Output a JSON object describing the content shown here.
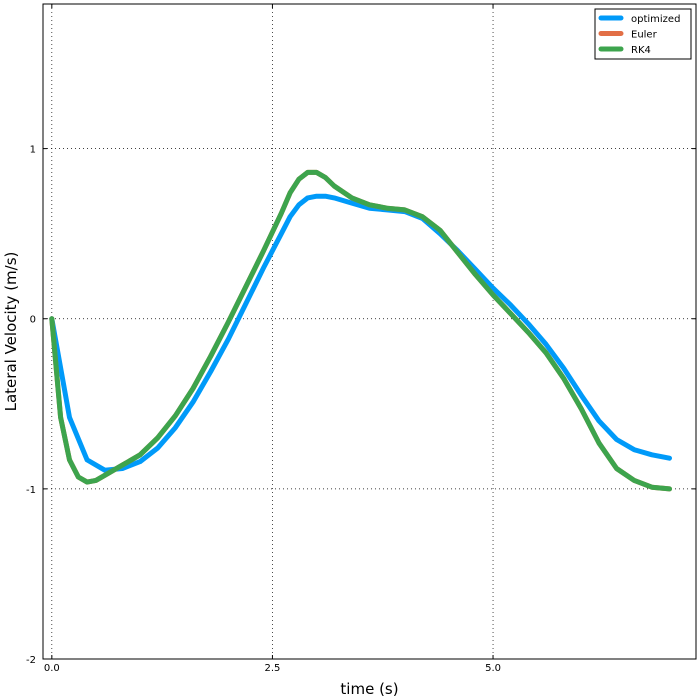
{
  "chart_data": {
    "type": "line",
    "title": "",
    "xlabel": "time (s)",
    "ylabel": "Lateral Velocity (m/s)",
    "xlim": [
      -0.1,
      7.3
    ],
    "ylim": [
      -2.0,
      1.85
    ],
    "xticks": [
      {
        "value": 0.0,
        "label": "0.0"
      },
      {
        "value": 2.5,
        "label": "2.5"
      },
      {
        "value": 5.0,
        "label": "5.0"
      }
    ],
    "yticks": [
      {
        "value": -2,
        "label": "-2"
      },
      {
        "value": -1,
        "label": "-1"
      },
      {
        "value": 0,
        "label": "0"
      },
      {
        "value": 1,
        "label": "1"
      }
    ],
    "grid": true,
    "legend_position": "top-right",
    "series": [
      {
        "name": "optimized",
        "color": "#009af9",
        "x": [
          0.0,
          0.2,
          0.4,
          0.6,
          0.8,
          1.0,
          1.2,
          1.4,
          1.6,
          1.8,
          2.0,
          2.2,
          2.4,
          2.6,
          2.7,
          2.8,
          2.9,
          3.0,
          3.1,
          3.2,
          3.4,
          3.6,
          3.8,
          4.0,
          4.2,
          4.4,
          4.6,
          4.8,
          5.0,
          5.2,
          5.4,
          5.6,
          5.8,
          6.0,
          6.2,
          6.4,
          6.6,
          6.8,
          7.0
        ],
        "y": [
          0.0,
          -0.58,
          -0.83,
          -0.89,
          -0.88,
          -0.84,
          -0.76,
          -0.64,
          -0.49,
          -0.31,
          -0.12,
          0.09,
          0.3,
          0.5,
          0.6,
          0.67,
          0.71,
          0.72,
          0.72,
          0.71,
          0.68,
          0.65,
          0.64,
          0.63,
          0.59,
          0.5,
          0.4,
          0.29,
          0.18,
          0.08,
          -0.03,
          -0.15,
          -0.29,
          -0.45,
          -0.6,
          -0.71,
          -0.77,
          -0.8,
          -0.82
        ]
      },
      {
        "name": "Euler",
        "color": "#e26f46",
        "x": [
          0.0,
          0.1,
          0.2,
          0.3,
          0.4,
          0.5,
          0.6,
          0.8,
          1.0,
          1.2,
          1.4,
          1.6,
          1.8,
          2.0,
          2.2,
          2.4,
          2.6,
          2.7,
          2.8,
          2.9,
          3.0,
          3.1,
          3.2,
          3.4,
          3.6,
          3.8,
          4.0,
          4.1,
          4.2,
          4.4,
          4.6,
          4.8,
          5.0,
          5.2,
          5.4,
          5.6,
          5.8,
          6.0,
          6.2,
          6.4,
          6.6,
          6.8,
          7.0
        ],
        "y": [
          0.0,
          -0.58,
          -0.83,
          -0.93,
          -0.96,
          -0.95,
          -0.92,
          -0.86,
          -0.8,
          -0.7,
          -0.57,
          -0.41,
          -0.22,
          -0.02,
          0.19,
          0.4,
          0.62,
          0.74,
          0.82,
          0.86,
          0.86,
          0.83,
          0.78,
          0.71,
          0.67,
          0.65,
          0.64,
          0.62,
          0.6,
          0.52,
          0.39,
          0.26,
          0.14,
          0.03,
          -0.08,
          -0.2,
          -0.35,
          -0.53,
          -0.73,
          -0.88,
          -0.95,
          -0.99,
          -1.0
        ]
      },
      {
        "name": "RK4",
        "color": "#3da44d",
        "x": [
          0.0,
          0.1,
          0.2,
          0.3,
          0.4,
          0.5,
          0.6,
          0.8,
          1.0,
          1.2,
          1.4,
          1.6,
          1.8,
          2.0,
          2.2,
          2.4,
          2.6,
          2.7,
          2.8,
          2.9,
          3.0,
          3.1,
          3.2,
          3.4,
          3.6,
          3.8,
          4.0,
          4.1,
          4.2,
          4.4,
          4.6,
          4.8,
          5.0,
          5.2,
          5.4,
          5.6,
          5.8,
          6.0,
          6.2,
          6.4,
          6.6,
          6.8,
          7.0
        ],
        "y": [
          0.0,
          -0.58,
          -0.83,
          -0.93,
          -0.96,
          -0.95,
          -0.92,
          -0.86,
          -0.8,
          -0.7,
          -0.57,
          -0.41,
          -0.22,
          -0.02,
          0.19,
          0.4,
          0.62,
          0.74,
          0.82,
          0.86,
          0.86,
          0.83,
          0.78,
          0.71,
          0.67,
          0.65,
          0.64,
          0.62,
          0.6,
          0.52,
          0.39,
          0.26,
          0.14,
          0.03,
          -0.08,
          -0.2,
          -0.35,
          -0.53,
          -0.73,
          -0.88,
          -0.95,
          -0.99,
          -1.0
        ]
      }
    ]
  }
}
